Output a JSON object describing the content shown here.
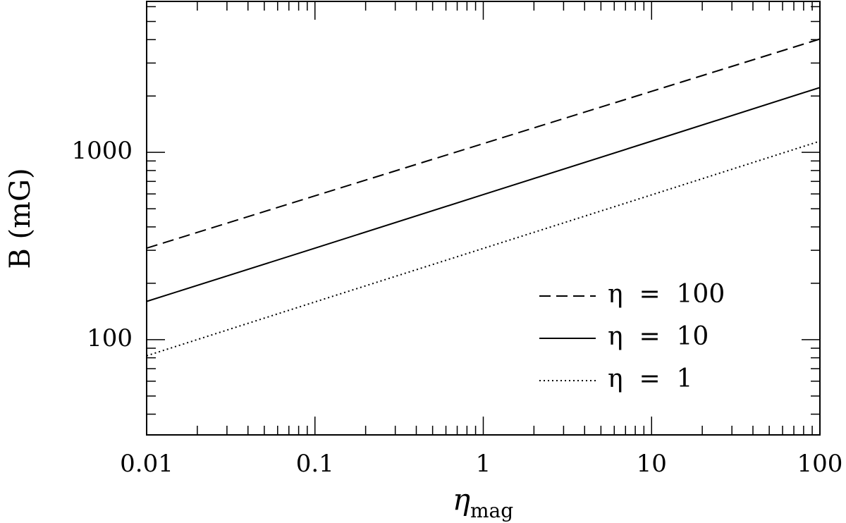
{
  "chart_data": {
    "type": "line",
    "xlabel_symbol": "η",
    "xlabel_subscript": "mag",
    "ylabel": "B (mG)",
    "x": [
      0.01,
      0.1,
      1,
      10,
      100
    ],
    "series": [
      {
        "name": "η  =  100",
        "color": "#000000",
        "dash": "dashed",
        "values": [
          308,
          586,
          1114,
          2118,
          4030
        ]
      },
      {
        "name": "η  =  10",
        "color": "#000000",
        "dash": "solid",
        "values": [
          160,
          308,
          595,
          1148,
          2220
        ]
      },
      {
        "name": "η  =  1",
        "color": "#000000",
        "dash": "dotted",
        "values": [
          82,
          159,
          307,
          593,
          1148
        ]
      }
    ],
    "xlog": true,
    "ylog": true,
    "xlim": [
      0.01,
      100
    ],
    "ylim": [
      31,
      6400
    ],
    "xticks": [
      0.01,
      0.1,
      1,
      10,
      100
    ],
    "yticks": [
      100,
      1000
    ],
    "xminorticks": [
      0.02,
      0.03,
      0.04,
      0.05,
      0.06,
      0.07,
      0.08,
      0.09,
      0.2,
      0.3,
      0.4,
      0.5,
      0.6,
      0.7,
      0.8,
      0.9,
      2,
      3,
      4,
      5,
      6,
      7,
      8,
      9,
      20,
      30,
      40,
      50,
      60,
      70,
      80,
      90
    ],
    "yminorticks": [
      40,
      50,
      60,
      70,
      80,
      90,
      200,
      300,
      400,
      500,
      600,
      700,
      800,
      900,
      2000,
      3000,
      4000,
      5000,
      6000
    ],
    "legend": "lower right"
  }
}
